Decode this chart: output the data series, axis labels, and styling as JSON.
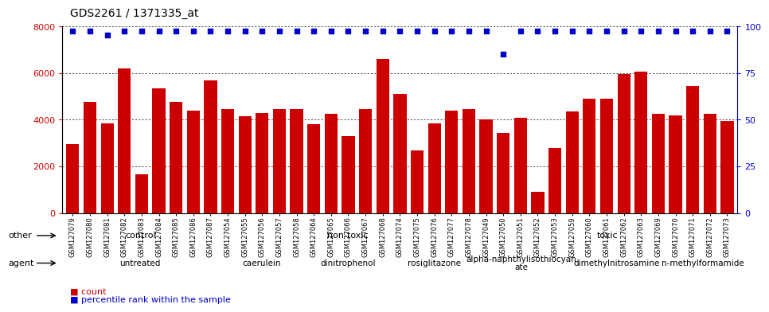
{
  "title": "GDS2261 / 1371335_at",
  "categories": [
    "GSM127079",
    "GSM127080",
    "GSM127081",
    "GSM127082",
    "GSM127083",
    "GSM127084",
    "GSM127085",
    "GSM127086",
    "GSM127087",
    "GSM127054",
    "GSM127055",
    "GSM127056",
    "GSM127057",
    "GSM127058",
    "GSM127064",
    "GSM127065",
    "GSM127066",
    "GSM127067",
    "GSM127068",
    "GSM127074",
    "GSM127075",
    "GSM127076",
    "GSM127077",
    "GSM127078",
    "GSM127049",
    "GSM127050",
    "GSM127051",
    "GSM127052",
    "GSM127053",
    "GSM127059",
    "GSM127060",
    "GSM127061",
    "GSM127062",
    "GSM127063",
    "GSM127069",
    "GSM127070",
    "GSM127071",
    "GSM127072",
    "GSM127073"
  ],
  "bar_values": [
    2950,
    4750,
    3850,
    6200,
    1650,
    5350,
    4750,
    4400,
    5700,
    4450,
    4150,
    4300,
    4450,
    4450,
    3800,
    4250,
    3300,
    4450,
    6600,
    5100,
    2700,
    3850,
    4400,
    4450,
    4000,
    3450,
    4100,
    900,
    2800,
    4350,
    4900,
    4900,
    5950,
    6050,
    4250,
    4200,
    5450,
    4250,
    3950
  ],
  "percentile_y_left": [
    7800,
    7800,
    7650,
    7800,
    7800,
    7800,
    7800,
    7800,
    7800,
    7800,
    7800,
    7800,
    7800,
    7800,
    7800,
    7800,
    7800,
    7800,
    7800,
    7800,
    7800,
    7800,
    7800,
    7800,
    7800,
    6800,
    7800,
    7800,
    7800,
    7800,
    7800,
    7800,
    7800,
    7800,
    7800,
    7800,
    7800,
    7800,
    7800
  ],
  "bar_color": "#cc0000",
  "percentile_color": "#0000cc",
  "ylim_left": [
    0,
    8000
  ],
  "ylim_right": [
    0,
    100
  ],
  "yticks_left": [
    0,
    2000,
    4000,
    6000,
    8000
  ],
  "yticks_right": [
    0,
    25,
    50,
    75,
    100
  ],
  "other_groups": [
    {
      "label": "control",
      "start": 0,
      "end": 9,
      "color": "#aaddaa"
    },
    {
      "label": "non-toxic",
      "start": 9,
      "end": 24,
      "color": "#66cc66"
    },
    {
      "label": "toxic",
      "start": 24,
      "end": 39,
      "color": "#66cc66"
    }
  ],
  "agent_groups": [
    {
      "label": "untreated",
      "start": 0,
      "end": 9,
      "color": "#f2d0e8"
    },
    {
      "label": "caerulein",
      "start": 9,
      "end": 14,
      "color": "#e8aadd"
    },
    {
      "label": "dinitrophenol",
      "start": 14,
      "end": 19,
      "color": "#e8aadd"
    },
    {
      "label": "rosiglitazone",
      "start": 19,
      "end": 24,
      "color": "#e8aadd"
    },
    {
      "label": "alpha-naphthylisothiocyan\nate",
      "start": 24,
      "end": 29,
      "color": "#cc77bb"
    },
    {
      "label": "dimethylnitrosamine",
      "start": 29,
      "end": 35,
      "color": "#cc44bb"
    },
    {
      "label": "n-methylformamide",
      "start": 35,
      "end": 39,
      "color": "#cc44bb"
    }
  ],
  "legend_count_color": "#cc0000",
  "legend_pct_color": "#0000cc"
}
